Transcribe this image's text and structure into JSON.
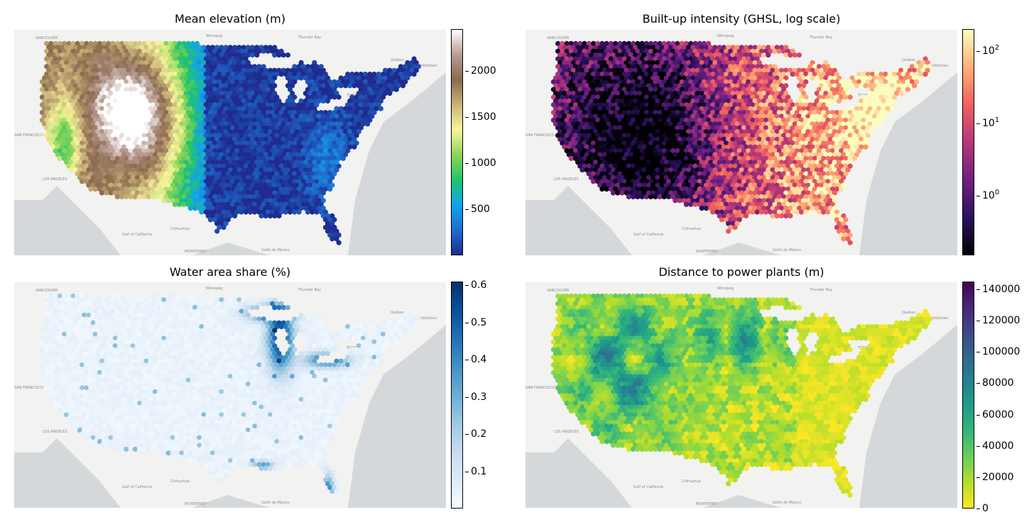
{
  "panels": [
    {
      "id": "elevation",
      "title": "Mean elevation (m)",
      "colormap": [
        "#1f2b8f",
        "#1d6fd0",
        "#12a3ef",
        "#22c36a",
        "#8fd45a",
        "#f7f59a",
        "#c9b47a",
        "#8d6a4e",
        "#b89c92",
        "#ffffff"
      ],
      "colorbar": {
        "min": 0,
        "max": 2450,
        "scale": "linear",
        "ticks": [
          {
            "value": 500,
            "label": "500"
          },
          {
            "value": 1000,
            "label": "1000"
          },
          {
            "value": 1500,
            "label": "1500"
          },
          {
            "value": 2000,
            "label": "2000"
          }
        ]
      }
    },
    {
      "id": "builtup",
      "title": "Built-up intensity (GHSL, log scale)",
      "colormap": [
        "#000004",
        "#2c115f",
        "#721f81",
        "#b73779",
        "#f1605d",
        "#feb078",
        "#fcfdbf"
      ],
      "colorbar": {
        "min": 0.15,
        "max": 200,
        "scale": "log",
        "ticks": [
          {
            "value": 1,
            "base": "10",
            "exp": "0"
          },
          {
            "value": 10,
            "base": "10",
            "exp": "1"
          },
          {
            "value": 100,
            "base": "10",
            "exp": "2"
          }
        ]
      }
    },
    {
      "id": "water",
      "title": "Water area share (%)",
      "colormap": [
        "#f7fbff",
        "#deebf7",
        "#c6dbef",
        "#9ecae1",
        "#6baed6",
        "#4292c6",
        "#2171b5",
        "#08519c",
        "#08306b"
      ],
      "colorbar": {
        "min": 0.0,
        "max": 0.61,
        "scale": "linear",
        "ticks": [
          {
            "value": 0.1,
            "label": "0.1"
          },
          {
            "value": 0.2,
            "label": "0.2"
          },
          {
            "value": 0.3,
            "label": "0.3"
          },
          {
            "value": 0.4,
            "label": "0.4"
          },
          {
            "value": 0.5,
            "label": "0.5"
          },
          {
            "value": 0.6,
            "label": "0.6"
          }
        ]
      }
    },
    {
      "id": "powerplants",
      "title": "Distance to power plants (m)",
      "colormap": [
        "#fde725",
        "#b5de2b",
        "#6ece58",
        "#35b779",
        "#1f9e89",
        "#26828e",
        "#31688e",
        "#3e4989",
        "#482878",
        "#440154"
      ],
      "colorbar": {
        "min": 0,
        "max": 145000,
        "scale": "linear",
        "ticks": [
          {
            "value": 0,
            "label": "0"
          },
          {
            "value": 20000,
            "label": "20000"
          },
          {
            "value": 40000,
            "label": "40000"
          },
          {
            "value": 60000,
            "label": "60000"
          },
          {
            "value": 80000,
            "label": "80000"
          },
          {
            "value": 100000,
            "label": "100000"
          },
          {
            "value": 120000,
            "label": "120000"
          },
          {
            "value": 140000,
            "label": "140000"
          }
        ]
      }
    }
  ],
  "basemap": {
    "land_color": "#f2f2f0",
    "water_color": "#d4d8da",
    "labels": [
      "VANCOUVER",
      "Winnipeg",
      "Thunder Bay",
      "Québec",
      "Ottawa",
      "TORONTO",
      "Charlottetown",
      "SAN FRANCISCO",
      "LOS ANGELES",
      "Chihuahua",
      "Gulf of California",
      "MONTERREY",
      "Golfo de México"
    ]
  }
}
